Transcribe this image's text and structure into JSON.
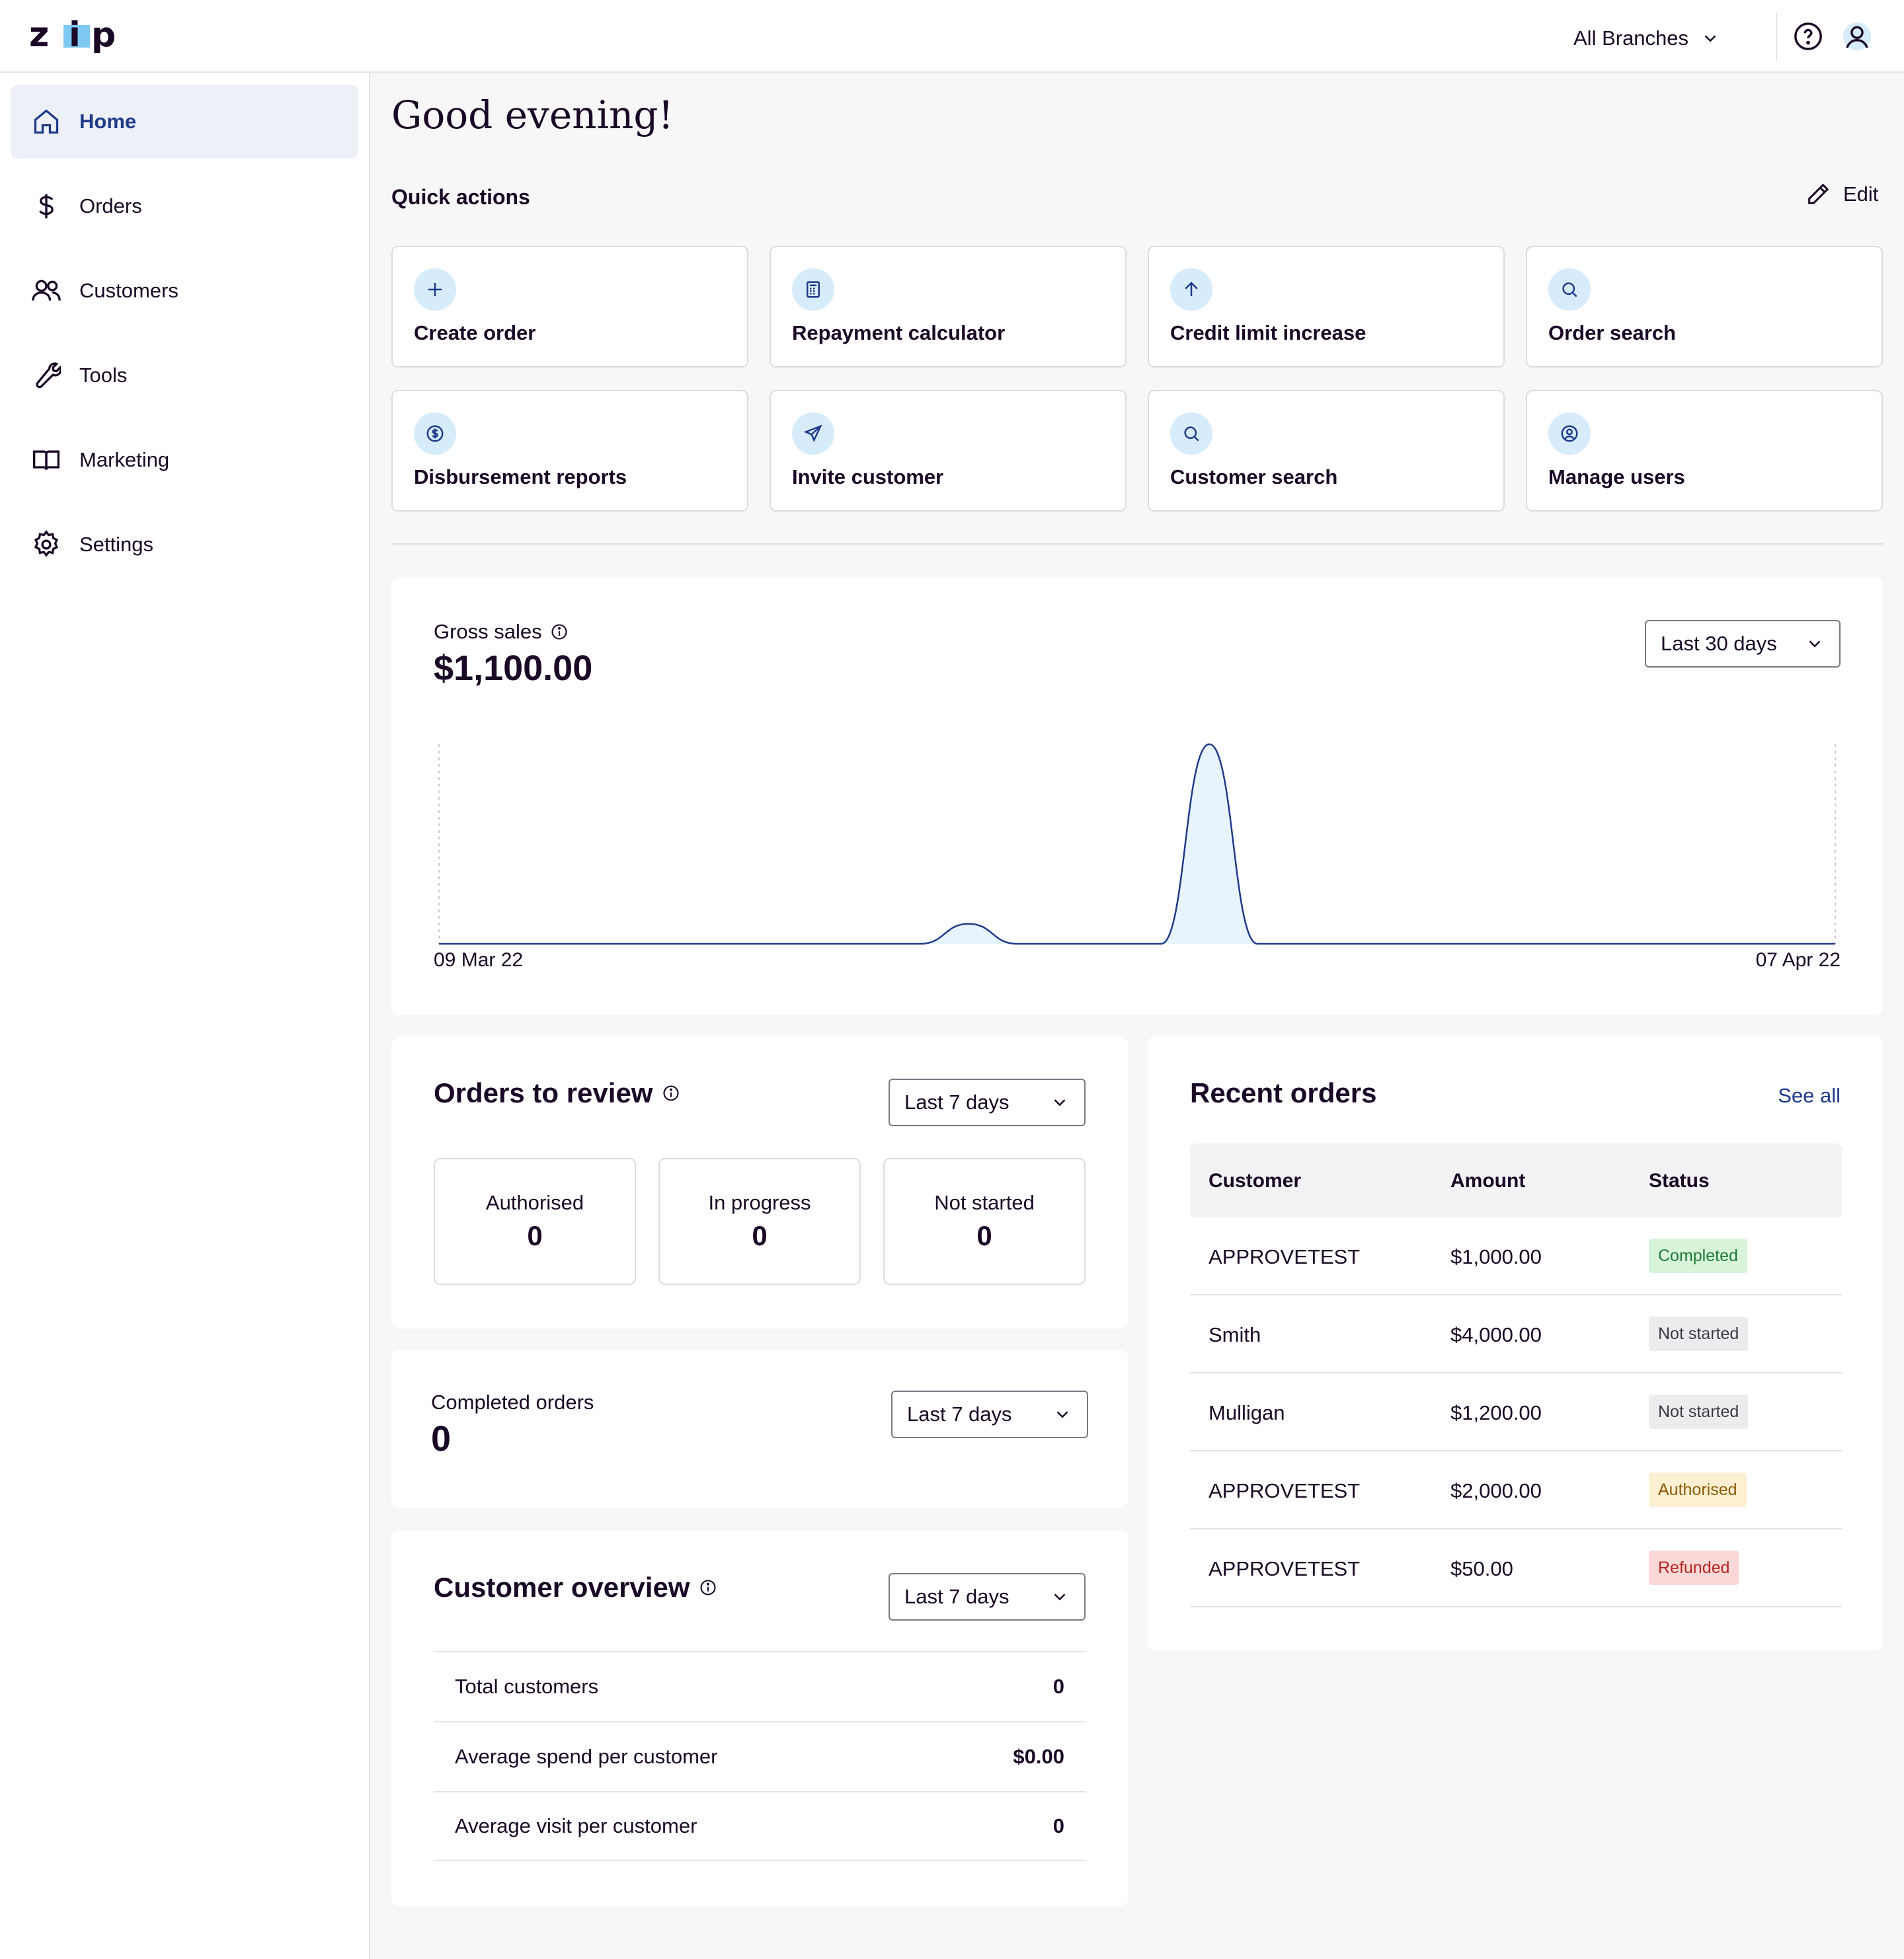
{
  "header": {
    "logo_text": "zip",
    "branch_label": "All Branches",
    "icons": [
      "help-icon",
      "user-icon"
    ]
  },
  "sidebar": {
    "items": [
      {
        "label": "Home",
        "icon": "home-icon",
        "active": true
      },
      {
        "label": "Orders",
        "icon": "dollar-icon"
      },
      {
        "label": "Customers",
        "icon": "users-icon"
      },
      {
        "label": "Tools",
        "icon": "wrench-icon"
      },
      {
        "label": "Marketing",
        "icon": "book-icon"
      },
      {
        "label": "Settings",
        "icon": "gear-icon"
      }
    ]
  },
  "main": {
    "greeting": "Good evening!",
    "quick_actions": {
      "title": "Quick actions",
      "edit_label": "Edit",
      "items": [
        {
          "label": "Create order",
          "icon": "plus-icon"
        },
        {
          "label": "Repayment calculator",
          "icon": "calculator-icon"
        },
        {
          "label": "Credit limit increase",
          "icon": "arrow-up-icon"
        },
        {
          "label": "Order search",
          "icon": "search-icon"
        },
        {
          "label": "Disbursement reports",
          "icon": "dollar-circle-icon"
        },
        {
          "label": "Invite customer",
          "icon": "send-icon"
        },
        {
          "label": "Customer search",
          "icon": "search-icon"
        },
        {
          "label": "Manage users",
          "icon": "user-circle-icon"
        }
      ]
    },
    "gross_sales": {
      "label": "Gross sales",
      "value": "$1,100.00",
      "range": "Last 30 days"
    },
    "orders_to_review": {
      "title": "Orders to review",
      "range": "Last 7 days",
      "stats": [
        {
          "label": "Authorised",
          "value": "0"
        },
        {
          "label": "In progress",
          "value": "0"
        },
        {
          "label": "Not started",
          "value": "0"
        }
      ]
    },
    "completed_orders": {
      "label": "Completed orders",
      "value": "0",
      "range": "Last 7 days"
    },
    "customer_overview": {
      "title": "Customer overview",
      "range": "Last 7 days",
      "rows": [
        {
          "label": "Total customers",
          "value": "0"
        },
        {
          "label": "Average spend per customer",
          "value": "$0.00"
        },
        {
          "label": "Average visit per customer",
          "value": "0"
        }
      ]
    },
    "recent_orders": {
      "title": "Recent orders",
      "see_all": "See all",
      "columns": [
        "Customer",
        "Amount",
        "Status"
      ],
      "rows": [
        {
          "customer": "APPROVETEST",
          "amount": "$1,000.00",
          "status": "Completed"
        },
        {
          "customer": "Smith",
          "amount": "$4,000.00",
          "status": "Not started"
        },
        {
          "customer": "Mulligan",
          "amount": "$1,200.00",
          "status": "Not started"
        },
        {
          "customer": "APPROVETEST",
          "amount": "$2,000.00",
          "status": "Authorised"
        },
        {
          "customer": "APPROVETEST",
          "amount": "$50.00",
          "status": "Refunded"
        }
      ]
    }
  },
  "chart_data": {
    "type": "area",
    "x_start_label": "09 Mar 22",
    "x_end_label": "07 Apr 22",
    "days": 30,
    "values": [
      0,
      0,
      0,
      0,
      0,
      0,
      0,
      0,
      0,
      0,
      0,
      100,
      0,
      0,
      0,
      0,
      1000,
      0,
      0,
      0,
      0,
      0,
      0,
      0,
      0,
      0,
      0,
      0,
      0,
      0
    ],
    "color": "#1e3a8a",
    "fill": "#e8f4fd"
  },
  "colors": {
    "accent": "#1e3a8a",
    "icon_bg": "#d6ecfb",
    "completed_bg": "#d8f5dc",
    "completed_fg": "#1d7a34",
    "not_started_bg": "#ececef",
    "not_started_fg": "#3a3a44",
    "authorised_bg": "#fdf0d2",
    "authorised_fg": "#8a5a05",
    "refunded_bg": "#fbd8d8",
    "refunded_fg": "#b3261e"
  }
}
